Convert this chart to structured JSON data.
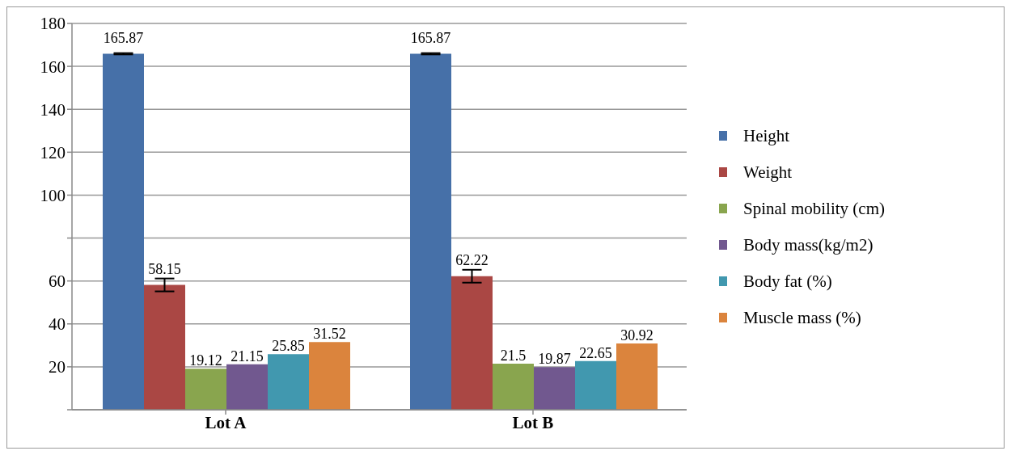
{
  "chart_data": {
    "type": "bar",
    "categories": [
      "Lot A",
      "Lot B"
    ],
    "series": [
      {
        "name": "Height",
        "color": "#4670a8",
        "values": [
          165.87,
          165.87
        ],
        "errors": [
          0.3,
          0.3
        ]
      },
      {
        "name": "Weight",
        "color": "#aa4744",
        "values": [
          58.15,
          62.22
        ],
        "errors": [
          3,
          3
        ]
      },
      {
        "name": "Spinal mobility (cm)",
        "color": "#89a54e",
        "values": [
          19.12,
          21.5
        ]
      },
      {
        "name": "Body mass(kg/m2)",
        "color": "#71588f",
        "values": [
          21.15,
          19.87
        ]
      },
      {
        "name": "Body fat (%)",
        "color": "#4198af",
        "values": [
          25.85,
          22.65
        ]
      },
      {
        "name": "Muscle mass (%)",
        "color": "#db843d",
        "values": [
          31.52,
          30.92
        ]
      }
    ],
    "ylim": [
      0,
      180
    ],
    "yticks": [
      {
        "value": 0,
        "label": null
      },
      20,
      40,
      60,
      {
        "value": 80,
        "label": null
      },
      100,
      120,
      140,
      160,
      180
    ],
    "grid": "y",
    "legend": "right",
    "data_labels": true
  }
}
